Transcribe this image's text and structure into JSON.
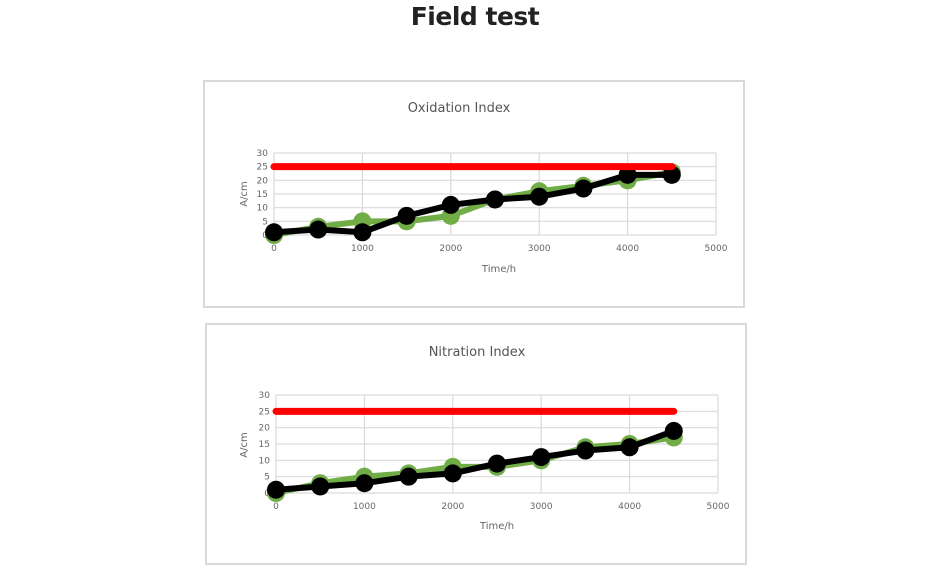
{
  "page_title": "Field test",
  "chart_data": [
    {
      "type": "line",
      "title": "Oxidation Index",
      "xlabel": "Time/h",
      "ylabel": "A/cm",
      "xlim": [
        0,
        5000
      ],
      "ylim": [
        0,
        30
      ],
      "xticks": [
        "0",
        "1000",
        "2000",
        "3000",
        "4000",
        "5000"
      ],
      "yticks": [
        "0",
        "5",
        "10",
        "15",
        "20",
        "25",
        "30"
      ],
      "grid": true,
      "x": [
        0,
        500,
        1000,
        1500,
        2000,
        2500,
        3000,
        3500,
        4000,
        4500
      ],
      "series": [
        {
          "color": "#70ad47",
          "values": [
            0,
            3,
            5,
            5,
            7,
            13,
            16,
            18,
            20,
            23
          ]
        },
        {
          "color": "#000000",
          "values": [
            1,
            2,
            1,
            7,
            11,
            13,
            14,
            17,
            22,
            22
          ]
        },
        {
          "color": "#ff0000",
          "values": [
            25,
            25,
            25,
            25,
            25,
            25,
            25,
            25,
            25,
            25
          ],
          "markers": false
        }
      ]
    },
    {
      "type": "line",
      "title": "Nitration Index",
      "xlabel": "Time/h",
      "ylabel": "A/cm",
      "xlim": [
        0,
        5000
      ],
      "ylim": [
        0,
        30
      ],
      "xticks": [
        "0",
        "1000",
        "2000",
        "3000",
        "4000",
        "5000"
      ],
      "yticks": [
        "0",
        "5",
        "10",
        "15",
        "20",
        "25",
        "30"
      ],
      "grid": true,
      "x": [
        0,
        500,
        1000,
        1500,
        2000,
        2500,
        3000,
        3500,
        4000,
        4500
      ],
      "series": [
        {
          "color": "#70ad47",
          "values": [
            0,
            3,
            5,
            6,
            8,
            8,
            10,
            14,
            15,
            17
          ]
        },
        {
          "color": "#000000",
          "values": [
            1,
            2,
            3,
            5,
            6,
            9,
            11,
            13,
            14,
            19
          ]
        },
        {
          "color": "#ff0000",
          "values": [
            25,
            25,
            25,
            25,
            25,
            25,
            25,
            25,
            25,
            25
          ],
          "markers": false
        }
      ]
    }
  ]
}
